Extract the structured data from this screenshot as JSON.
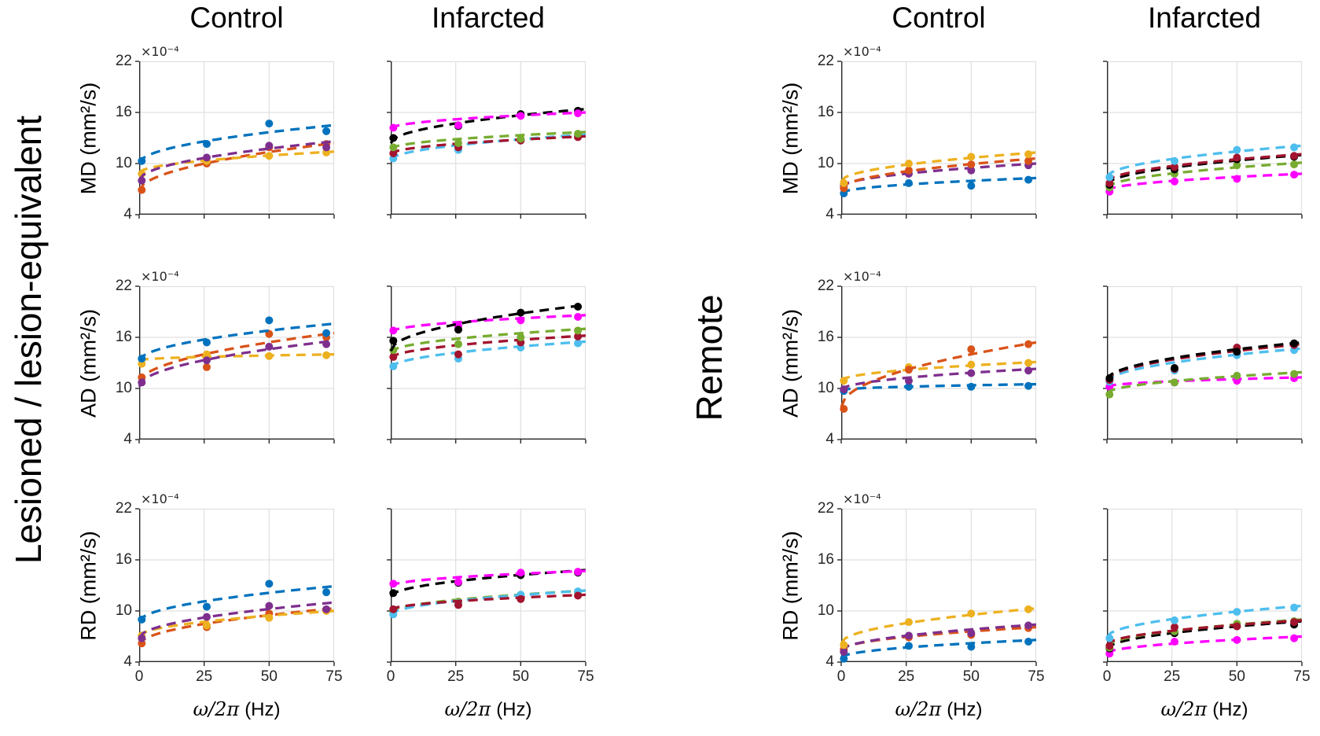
{
  "groups": [
    {
      "label": "Lesioned / lesion-equivalent",
      "columns": [
        "Control",
        "Infarcted"
      ],
      "rows": [
        "MD (mm²/s)",
        "AD (mm²/s)",
        "RD (mm²/s)"
      ]
    },
    {
      "label": "Remote",
      "columns": [
        "Control",
        "Infarcted"
      ],
      "rows": [
        "MD (mm²/s)",
        "AD (mm²/s)",
        "RD (mm²/s)"
      ]
    }
  ],
  "axes": {
    "x_label_math": "ω/2π",
    "x_label_unit": "(Hz)",
    "x_ticks": [
      "0",
      "25",
      "50",
      "75"
    ],
    "y_ticks": [
      "22",
      "16",
      "10",
      "4"
    ],
    "y_scale_label": "×10⁻⁴",
    "xlim": [
      0,
      75
    ],
    "ylim": [
      4,
      22
    ],
    "y_unit": "×10⁻⁴ mm²/s",
    "grid": true
  },
  "palette": {
    "blue": "#0072BD",
    "orange": "#D95319",
    "yellow": "#EDB120",
    "purple": "#7E2F8E",
    "green": "#77AC30",
    "cyan": "#4DBEEE",
    "darkred": "#A2142F",
    "magenta": "#FF00FF",
    "black": "#000000"
  },
  "chart_data": [
    {
      "id": "lesioned-md-control",
      "group": 0,
      "row": 0,
      "col": 0,
      "type": "scatter",
      "title": "Lesioned MD Control",
      "x_points": [
        1,
        26,
        50,
        72
      ],
      "series": [
        {
          "name": "orange",
          "color": "#D95319",
          "y": [
            6.9,
            10.0,
            11.9,
            12.3
          ],
          "fit": [
            6.7,
            12.4
          ]
        },
        {
          "name": "yellow",
          "color": "#EDB120",
          "y": [
            8.8,
            10.3,
            10.9,
            11.3
          ],
          "fit": [
            8.9,
            11.4
          ]
        },
        {
          "name": "purple",
          "color": "#7E2F8E",
          "y": [
            8.0,
            10.7,
            12.1,
            11.9
          ],
          "fit": [
            8.0,
            12.6
          ]
        },
        {
          "name": "blue",
          "color": "#0072BD",
          "y": [
            10.3,
            12.3,
            14.7,
            13.8
          ],
          "fit": [
            10.0,
            14.5
          ]
        }
      ]
    },
    {
      "id": "lesioned-md-infarcted",
      "group": 0,
      "row": 0,
      "col": 1,
      "type": "scatter",
      "title": "Lesioned MD Infarcted",
      "x_points": [
        1,
        26,
        50,
        72
      ],
      "series": [
        {
          "name": "cyan",
          "color": "#4DBEEE",
          "y": [
            10.6,
            11.6,
            12.8,
            13.3
          ],
          "fit": [
            10.4,
            13.4
          ]
        },
        {
          "name": "darkred",
          "color": "#A2142F",
          "y": [
            11.2,
            11.9,
            12.7,
            13.1
          ],
          "fit": [
            11.1,
            13.2
          ]
        },
        {
          "name": "green",
          "color": "#77AC30",
          "y": [
            11.9,
            12.4,
            12.9,
            13.5
          ],
          "fit": [
            11.7,
            13.7
          ]
        },
        {
          "name": "black",
          "color": "#000000",
          "y": [
            13.0,
            14.4,
            15.8,
            16.2
          ],
          "fit": [
            12.4,
            16.4
          ]
        },
        {
          "name": "magenta",
          "color": "#FF00FF",
          "y": [
            14.2,
            14.5,
            15.6,
            15.9
          ],
          "fit": [
            14.1,
            16.0
          ]
        }
      ]
    },
    {
      "id": "lesioned-ad-control",
      "group": 0,
      "row": 1,
      "col": 0,
      "type": "scatter",
      "title": "Lesioned AD Control",
      "x_points": [
        1,
        26,
        50,
        72
      ],
      "series": [
        {
          "name": "orange",
          "color": "#D95319",
          "y": [
            11.3,
            12.5,
            16.4,
            16.0
          ],
          "fit": [
            10.6,
            16.5
          ]
        },
        {
          "name": "yellow",
          "color": "#EDB120",
          "y": [
            12.9,
            14.0,
            13.8,
            13.9
          ],
          "fit": [
            13.3,
            14.0
          ]
        },
        {
          "name": "purple",
          "color": "#7E2F8E",
          "y": [
            10.7,
            13.3,
            14.9,
            15.2
          ],
          "fit": [
            10.2,
            15.6
          ]
        },
        {
          "name": "blue",
          "color": "#0072BD",
          "y": [
            13.5,
            15.4,
            18.0,
            16.5
          ],
          "fit": [
            13.2,
            17.6
          ]
        }
      ]
    },
    {
      "id": "lesioned-ad-infarcted",
      "group": 0,
      "row": 1,
      "col": 1,
      "type": "scatter",
      "title": "Lesioned AD Infarcted",
      "x_points": [
        1,
        26,
        50,
        72
      ],
      "series": [
        {
          "name": "cyan",
          "color": "#4DBEEE",
          "y": [
            12.6,
            13.5,
            14.8,
            15.3
          ],
          "fit": [
            12.4,
            15.5
          ]
        },
        {
          "name": "darkred",
          "color": "#A2142F",
          "y": [
            13.7,
            14.0,
            15.4,
            16.1
          ],
          "fit": [
            13.5,
            16.2
          ]
        },
        {
          "name": "green",
          "color": "#77AC30",
          "y": [
            14.5,
            15.2,
            16.0,
            16.8
          ],
          "fit": [
            14.2,
            17.0
          ]
        },
        {
          "name": "magenta",
          "color": "#FF00FF",
          "y": [
            16.8,
            17.3,
            18.0,
            18.4
          ],
          "fit": [
            16.6,
            18.6
          ]
        },
        {
          "name": "black",
          "color": "#000000",
          "y": [
            15.6,
            16.9,
            18.9,
            19.6
          ],
          "fit": [
            14.4,
            19.8
          ]
        }
      ]
    },
    {
      "id": "lesioned-rd-control",
      "group": 0,
      "row": 2,
      "col": 0,
      "type": "scatter",
      "title": "Lesioned RD Control",
      "x_points": [
        1,
        26,
        50,
        72
      ],
      "series": [
        {
          "name": "orange",
          "color": "#D95319",
          "y": [
            6.2,
            8.1,
            9.7,
            10.1
          ],
          "fit": [
            6.0,
            10.3
          ]
        },
        {
          "name": "yellow",
          "color": "#EDB120",
          "y": [
            7.1,
            8.3,
            9.2,
            10.0
          ],
          "fit": [
            7.0,
            10.0
          ]
        },
        {
          "name": "purple",
          "color": "#7E2F8E",
          "y": [
            6.8,
            9.3,
            10.6,
            10.2
          ],
          "fit": [
            6.8,
            11.0
          ]
        },
        {
          "name": "blue",
          "color": "#0072BD",
          "y": [
            9.0,
            10.5,
            13.2,
            12.2
          ],
          "fit": [
            8.7,
            12.9
          ]
        }
      ]
    },
    {
      "id": "lesioned-rd-infarcted",
      "group": 0,
      "row": 2,
      "col": 1,
      "type": "scatter",
      "title": "Lesioned RD Infarcted",
      "x_points": [
        1,
        26,
        50,
        72
      ],
      "series": [
        {
          "name": "green",
          "color": "#77AC30",
          "y": [
            9.9,
            11.1,
            11.9,
            12.2
          ],
          "fit": [
            9.8,
            12.4
          ]
        },
        {
          "name": "cyan",
          "color": "#4DBEEE",
          "y": [
            9.6,
            10.8,
            11.9,
            12.3
          ],
          "fit": [
            9.5,
            12.4
          ]
        },
        {
          "name": "darkred",
          "color": "#A2142F",
          "y": [
            10.2,
            10.7,
            11.4,
            11.8
          ],
          "fit": [
            10.1,
            11.9
          ]
        },
        {
          "name": "black",
          "color": "#000000",
          "y": [
            12.1,
            13.3,
            14.2,
            14.5
          ],
          "fit": [
            11.7,
            14.8
          ]
        },
        {
          "name": "magenta",
          "color": "#FF00FF",
          "y": [
            13.2,
            13.4,
            14.5,
            14.6
          ],
          "fit": [
            12.9,
            14.7
          ]
        }
      ]
    },
    {
      "id": "remote-md-control",
      "group": 1,
      "row": 0,
      "col": 0,
      "type": "scatter",
      "title": "Remote MD Control",
      "x_points": [
        1,
        26,
        50,
        72
      ],
      "series": [
        {
          "name": "blue",
          "color": "#0072BD",
          "y": [
            6.5,
            7.7,
            7.4,
            8.1
          ],
          "fit": [
            6.5,
            8.3
          ]
        },
        {
          "name": "purple",
          "color": "#7E2F8E",
          "y": [
            7.4,
            8.8,
            9.2,
            9.8
          ],
          "fit": [
            7.2,
            10.0
          ]
        },
        {
          "name": "orange",
          "color": "#D95319",
          "y": [
            7.1,
            9.2,
            9.9,
            10.3
          ],
          "fit": [
            7.0,
            10.6
          ]
        },
        {
          "name": "yellow",
          "color": "#EDB120",
          "y": [
            7.7,
            10.0,
            10.8,
            11.1
          ],
          "fit": [
            7.9,
            11.3
          ]
        }
      ]
    },
    {
      "id": "remote-md-infarcted",
      "group": 1,
      "row": 0,
      "col": 1,
      "type": "scatter",
      "title": "Remote MD Infarcted",
      "x_points": [
        1,
        26,
        50,
        72
      ],
      "series": [
        {
          "name": "magenta",
          "color": "#FF00FF",
          "y": [
            6.7,
            7.9,
            8.2,
            8.7
          ],
          "fit": [
            6.8,
            8.8
          ]
        },
        {
          "name": "green",
          "color": "#77AC30",
          "y": [
            7.2,
            8.8,
            9.8,
            9.9
          ],
          "fit": [
            7.1,
            10.1
          ]
        },
        {
          "name": "black",
          "color": "#000000",
          "y": [
            7.5,
            9.3,
            10.5,
            10.8
          ],
          "fit": [
            7.5,
            11.0
          ]
        },
        {
          "name": "darkred",
          "color": "#A2142F",
          "y": [
            7.7,
            9.6,
            10.7,
            10.9
          ],
          "fit": [
            7.8,
            11.1
          ]
        },
        {
          "name": "cyan",
          "color": "#4DBEEE",
          "y": [
            8.4,
            10.3,
            11.6,
            11.9
          ],
          "fit": [
            8.4,
            12.1
          ]
        }
      ]
    },
    {
      "id": "remote-ad-control",
      "group": 1,
      "row": 1,
      "col": 0,
      "type": "scatter",
      "title": "Remote AD Control",
      "x_points": [
        1,
        26,
        50,
        72
      ],
      "series": [
        {
          "name": "blue",
          "color": "#0072BD",
          "y": [
            9.7,
            10.2,
            10.2,
            10.3
          ],
          "fit": [
            9.8,
            10.5
          ]
        },
        {
          "name": "purple",
          "color": "#7E2F8E",
          "y": [
            9.9,
            10.9,
            11.8,
            12.1
          ],
          "fit": [
            9.8,
            12.3
          ]
        },
        {
          "name": "yellow",
          "color": "#EDB120",
          "y": [
            10.9,
            12.5,
            12.8,
            13.0
          ],
          "fit": [
            10.9,
            13.1
          ]
        },
        {
          "name": "orange",
          "color": "#D95319",
          "y": [
            7.6,
            12.2,
            14.6,
            15.2
          ],
          "fit": [
            7.8,
            15.4
          ]
        }
      ]
    },
    {
      "id": "remote-ad-infarcted",
      "group": 1,
      "row": 1,
      "col": 1,
      "type": "scatter",
      "title": "Remote AD Infarcted",
      "x_points": [
        1,
        26,
        50,
        72
      ],
      "series": [
        {
          "name": "magenta",
          "color": "#FF00FF",
          "y": [
            10.2,
            10.7,
            10.9,
            11.2
          ],
          "fit": [
            10.2,
            11.3
          ]
        },
        {
          "name": "green",
          "color": "#77AC30",
          "y": [
            9.3,
            10.7,
            11.5,
            11.7
          ],
          "fit": [
            9.4,
            11.9
          ]
        },
        {
          "name": "cyan",
          "color": "#4DBEEE",
          "y": [
            10.8,
            12.1,
            13.9,
            14.5
          ],
          "fit": [
            10.7,
            14.7
          ]
        },
        {
          "name": "darkred",
          "color": "#A2142F",
          "y": [
            11.0,
            12.3,
            14.8,
            15.1
          ],
          "fit": [
            10.9,
            15.2
          ]
        },
        {
          "name": "black",
          "color": "#000000",
          "y": [
            11.2,
            12.4,
            14.3,
            15.3
          ],
          "fit": [
            11.0,
            15.4
          ]
        }
      ]
    },
    {
      "id": "remote-rd-control",
      "group": 1,
      "row": 2,
      "col": 0,
      "type": "scatter",
      "title": "Remote RD Control",
      "x_points": [
        1,
        26,
        50,
        72
      ],
      "series": [
        {
          "name": "blue",
          "color": "#0072BD",
          "y": [
            4.4,
            5.9,
            5.8,
            6.4
          ],
          "fit": [
            4.5,
            6.6
          ]
        },
        {
          "name": "orange",
          "color": "#D95319",
          "y": [
            5.5,
            6.9,
            7.2,
            8.0
          ],
          "fit": [
            5.4,
            8.1
          ]
        },
        {
          "name": "purple",
          "color": "#7E2F8E",
          "y": [
            5.2,
            7.1,
            7.4,
            8.3
          ],
          "fit": [
            5.3,
            8.4
          ]
        },
        {
          "name": "yellow",
          "color": "#EDB120",
          "y": [
            6.0,
            8.7,
            9.7,
            10.2
          ],
          "fit": [
            6.2,
            10.3
          ]
        }
      ]
    },
    {
      "id": "remote-rd-infarcted",
      "group": 1,
      "row": 2,
      "col": 1,
      "type": "scatter",
      "title": "Remote RD Infarcted",
      "x_points": [
        1,
        26,
        50,
        72
      ],
      "series": [
        {
          "name": "magenta",
          "color": "#FF00FF",
          "y": [
            5.0,
            6.4,
            6.6,
            6.8
          ],
          "fit": [
            5.0,
            7.0
          ]
        },
        {
          "name": "black",
          "color": "#000000",
          "y": [
            5.6,
            7.4,
            8.2,
            8.4
          ],
          "fit": [
            5.5,
            8.8
          ]
        },
        {
          "name": "green",
          "color": "#77AC30",
          "y": [
            5.7,
            7.6,
            8.5,
            8.8
          ],
          "fit": [
            5.8,
            9.0
          ]
        },
        {
          "name": "darkred",
          "color": "#A2142F",
          "y": [
            5.9,
            8.1,
            8.2,
            8.7
          ],
          "fit": [
            6.0,
            8.9
          ]
        },
        {
          "name": "cyan",
          "color": "#4DBEEE",
          "y": [
            6.8,
            8.9,
            9.9,
            10.4
          ],
          "fit": [
            6.9,
            10.6
          ]
        }
      ]
    }
  ]
}
